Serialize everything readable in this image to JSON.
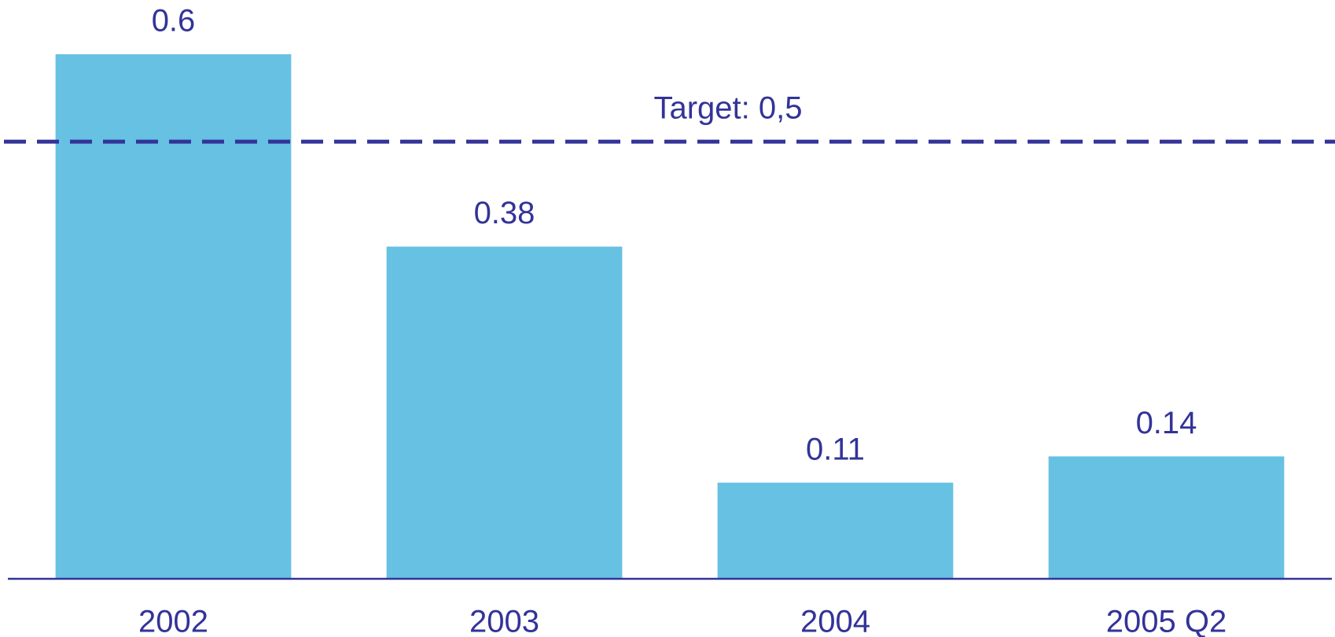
{
  "chart_data": {
    "type": "bar",
    "categories": [
      "2002",
      "2003",
      "2004",
      "2005 Q2"
    ],
    "values": [
      0.6,
      0.38,
      0.11,
      0.14
    ],
    "color": "#66c1e2",
    "reference_line": {
      "value": 0.5,
      "label": "Target: 0,5"
    }
  }
}
